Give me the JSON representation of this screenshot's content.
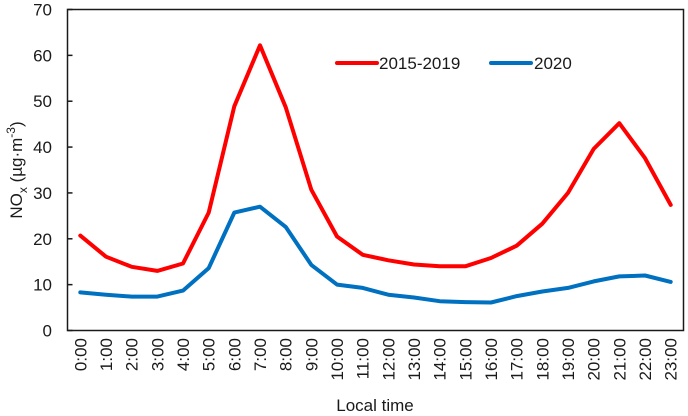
{
  "chart_data": {
    "type": "line",
    "title": "",
    "xlabel": "Local time",
    "ylabel": "NOx (µg·m⁻³)",
    "ylabel_parts": {
      "main": "NO",
      "sub": "x",
      "unit_pre": " (µg·m",
      "sup": "-3",
      "unit_post": ")"
    },
    "ylim": [
      0,
      70
    ],
    "yticks": [
      0,
      10,
      20,
      30,
      40,
      50,
      60,
      70
    ],
    "grid": false,
    "legend_position": "upper right (inside)",
    "categories": [
      "0:00",
      "1:00",
      "2:00",
      "3:00",
      "4:00",
      "5:00",
      "6:00",
      "7:00",
      "8:00",
      "9:00",
      "10:00",
      "11:00",
      "12:00",
      "13:00",
      "14:00",
      "15:00",
      "16:00",
      "17:00",
      "18:00",
      "19:00",
      "20:00",
      "21:00",
      "22:00",
      "23:00"
    ],
    "series": [
      {
        "name": "2015-2019",
        "color": "#ff0000",
        "values": [
          20.7,
          16.1,
          13.9,
          13.0,
          14.6,
          25.7,
          48.9,
          62.2,
          48.7,
          30.7,
          20.5,
          16.5,
          15.3,
          14.4,
          14.0,
          14.0,
          15.8,
          18.5,
          23.3,
          30.0,
          39.6,
          45.2,
          37.6,
          27.4
        ]
      },
      {
        "name": "2020",
        "color": "#0070c0",
        "values": [
          8.3,
          7.8,
          7.4,
          7.4,
          8.7,
          13.6,
          25.7,
          27.0,
          22.6,
          14.3,
          10.0,
          9.3,
          7.8,
          7.2,
          6.4,
          6.2,
          6.1,
          7.5,
          8.5,
          9.3,
          10.7,
          11.8,
          12.0,
          10.6
        ]
      }
    ]
  }
}
